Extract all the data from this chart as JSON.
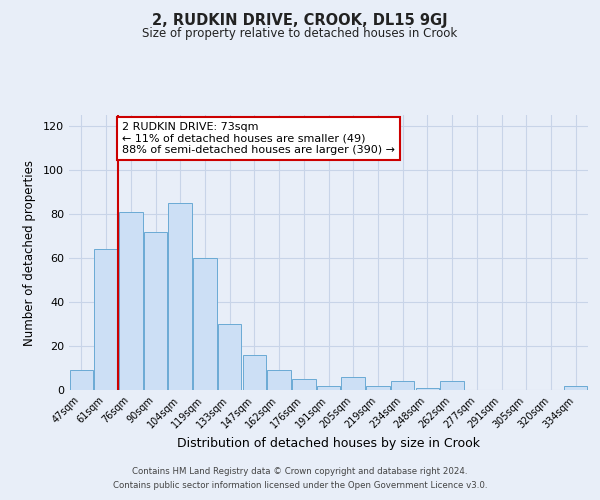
{
  "title": "2, RUDKIN DRIVE, CROOK, DL15 9GJ",
  "subtitle": "Size of property relative to detached houses in Crook",
  "xlabel": "Distribution of detached houses by size in Crook",
  "ylabel": "Number of detached properties",
  "bar_labels": [
    "47sqm",
    "61sqm",
    "76sqm",
    "90sqm",
    "104sqm",
    "119sqm",
    "133sqm",
    "147sqm",
    "162sqm",
    "176sqm",
    "191sqm",
    "205sqm",
    "219sqm",
    "234sqm",
    "248sqm",
    "262sqm",
    "277sqm",
    "291sqm",
    "305sqm",
    "320sqm",
    "334sqm"
  ],
  "bar_values": [
    9,
    64,
    81,
    72,
    85,
    60,
    30,
    16,
    9,
    5,
    2,
    6,
    2,
    4,
    1,
    4,
    0,
    0,
    0,
    0,
    2
  ],
  "bar_color": "#ccdff5",
  "bar_edge_color": "#6aaad4",
  "vline_x_idx": 2,
  "vline_color": "#cc0000",
  "ylim": [
    0,
    125
  ],
  "yticks": [
    0,
    20,
    40,
    60,
    80,
    100,
    120
  ],
  "annotation_text": "2 RUDKIN DRIVE: 73sqm\n← 11% of detached houses are smaller (49)\n88% of semi-detached houses are larger (390) →",
  "annotation_box_color": "#ffffff",
  "annotation_box_edge": "#cc0000",
  "footer_line1": "Contains HM Land Registry data © Crown copyright and database right 2024.",
  "footer_line2": "Contains public sector information licensed under the Open Government Licence v3.0.",
  "grid_color": "#c8d4e8",
  "fig_bg_color": "#e8eef8"
}
